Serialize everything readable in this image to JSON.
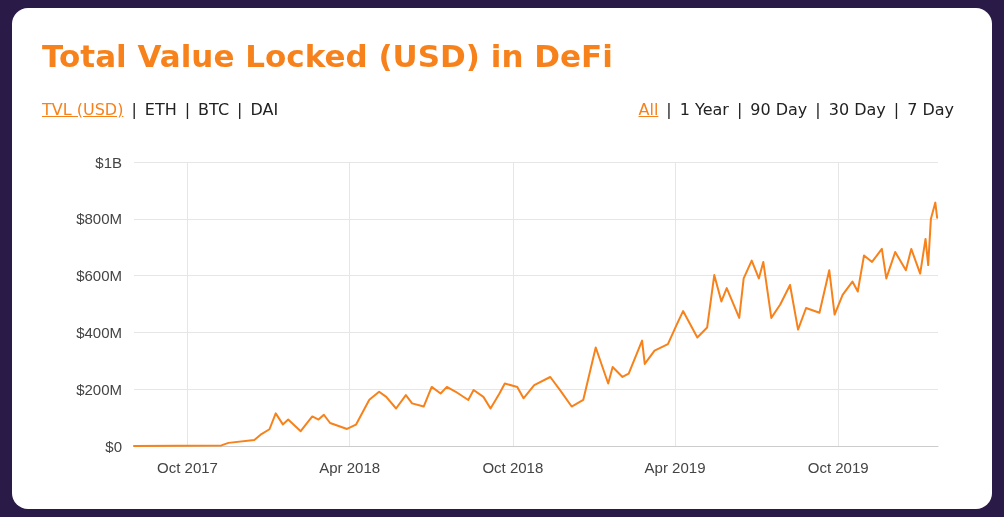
{
  "chart_data": {
    "type": "line",
    "title": "Total Value Locked (USD) in DeFi",
    "annotations": [
      "TVL (USD) | ETH | BTC | DAI",
      "All | 1 Year | 90 Day | 30 Day | 7 Day"
    ],
    "x": [
      "2017-08-02",
      "2017-11-08",
      "2017-11-16",
      "2017-12-15",
      "2017-12-23",
      "2018-01-01",
      "2018-01-08",
      "2018-01-16",
      "2018-01-22",
      "2018-02-05",
      "2018-02-18",
      "2018-02-25",
      "2018-03-03",
      "2018-03-10",
      "2018-03-29",
      "2018-04-08",
      "2018-04-23",
      "2018-05-04",
      "2018-05-12",
      "2018-05-23",
      "2018-06-03",
      "2018-06-10",
      "2018-06-23",
      "2018-07-02",
      "2018-07-12",
      "2018-07-19",
      "2018-07-29",
      "2018-08-12",
      "2018-08-18",
      "2018-08-29",
      "2018-09-06",
      "2018-09-16",
      "2018-09-22",
      "2018-10-06",
      "2018-10-13",
      "2018-10-25",
      "2018-11-12",
      "2018-11-23",
      "2018-12-06",
      "2018-12-19",
      "2019-01-02",
      "2019-01-16",
      "2019-01-21",
      "2019-02-01",
      "2019-02-08",
      "2019-02-23",
      "2019-02-26",
      "2019-03-09",
      "2019-03-24",
      "2019-04-03",
      "2019-04-10",
      "2019-04-26",
      "2019-05-07",
      "2019-05-15",
      "2019-05-23",
      "2019-05-29",
      "2019-06-12",
      "2019-06-17",
      "2019-06-26",
      "2019-07-04",
      "2019-07-09",
      "2019-07-18",
      "2019-07-28",
      "2019-08-08",
      "2019-08-17",
      "2019-08-26",
      "2019-09-10",
      "2019-09-21",
      "2019-09-27",
      "2019-10-06",
      "2019-10-17",
      "2019-10-23",
      "2019-10-30",
      "2019-11-08",
      "2019-11-19",
      "2019-11-24",
      "2019-12-04",
      "2019-12-16",
      "2019-12-22",
      "2020-01-01",
      "2020-01-07",
      "2020-01-10",
      "2020-01-13",
      "2020-01-18",
      "2020-01-20"
    ],
    "series": [
      {
        "color": "#f7821b",
        "values": [
          0,
          2000000.0,
          11000000.0,
          21000000.0,
          42000000.0,
          59000000.0,
          115000000.0,
          76000000.0,
          93000000.0,
          52000000.0,
          104000000.0,
          93000000.0,
          110000000.0,
          81000000.0,
          60000000.0,
          75000000.0,
          163000000.0,
          191000000.0,
          173000000.0,
          132000000.0,
          179000000.0,
          150000000.0,
          139000000.0,
          208000000.0,
          185000000.0,
          208000000.0,
          191000000.0,
          162000000.0,
          197000000.0,
          173000000.0,
          132000000.0,
          185000000.0,
          220000000.0,
          208000000.0,
          168000000.0,
          214000000.0,
          243000000.0,
          197000000.0,
          139000000.0,
          162000000.0,
          347000000.0,
          220000000.0,
          278000000.0,
          243000000.0,
          255000000.0,
          371000000.0,
          289000000.0,
          336000000.0,
          359000000.0,
          428000000.0,
          475000000.0,
          382000000.0,
          417000000.0,
          602000000.0,
          509000000.0,
          556000000.0,
          451000000.0,
          590000000.0,
          653000000.0,
          590000000.0,
          648000000.0,
          451000000.0,
          498000000.0,
          567000000.0,
          410000000.0,
          486000000.0,
          469000000.0,
          619000000.0,
          463000000.0,
          532000000.0,
          579000000.0,
          544000000.0,
          671000000.0,
          648000000.0,
          694000000.0,
          590000000.0,
          683000000.0,
          619000000.0,
          694000000.0,
          607000000.0,
          729000000.0,
          637000000.0,
          799000000.0,
          857000000.0,
          804000000.0
        ]
      }
    ],
    "xlim": [
      "2017-08-02",
      "2020-01-21"
    ],
    "xticks": [
      {
        "value": "2017-10-01",
        "label": "Oct 2017"
      },
      {
        "value": "2018-04-01",
        "label": "Apr 2018"
      },
      {
        "value": "2018-10-01",
        "label": "Oct 2018"
      },
      {
        "value": "2019-04-01",
        "label": "Apr 2019"
      },
      {
        "value": "2019-10-01",
        "label": "Oct 2019"
      }
    ],
    "ylim": [
      0,
      1000000000.0
    ],
    "yticks": [
      {
        "value": 0,
        "label": "$0"
      },
      {
        "value": 200000000.0,
        "label": "$200M"
      },
      {
        "value": 400000000.0,
        "label": "$400M"
      },
      {
        "value": 600000000.0,
        "label": "$600M"
      },
      {
        "value": 800000000.0,
        "label": "$800M"
      },
      {
        "value": 1000000000.0,
        "label": "$1B"
      }
    ],
    "grid": true,
    "marker": "none",
    "line_style": "solid"
  }
}
